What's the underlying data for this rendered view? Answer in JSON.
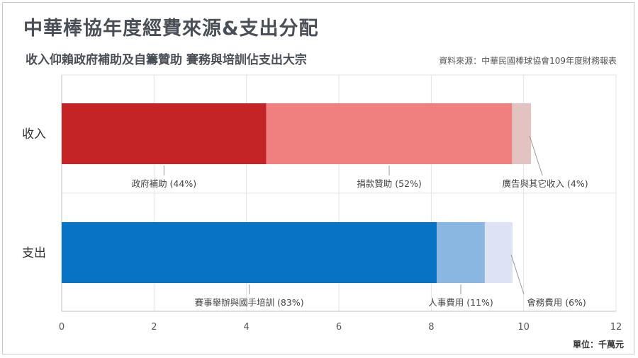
{
  "header": {
    "title": "中華棒協年度經費來源&支出分配",
    "subtitle": "收入仰賴政府補助及自籌贊助  賽務與培訓佔支出大宗",
    "source": "資料來源：中華民國棒球協會109年度財務報表",
    "unit": "單位：千萬元"
  },
  "chart_data": {
    "type": "bar",
    "orientation": "horizontal",
    "stacked": true,
    "categories": [
      "收入",
      "支出"
    ],
    "xlim": [
      0,
      12
    ],
    "xticks": [
      0,
      2,
      4,
      6,
      8,
      10,
      12
    ],
    "grid": true,
    "stacks": [
      {
        "category": "收入",
        "segments": [
          {
            "label": "政府補助 (44%)",
            "value": 4.43,
            "color": "#c52426"
          },
          {
            "label": "捐款贊助 (52%)",
            "value": 5.32,
            "color": "#f08080"
          },
          {
            "label": "廣告與其它收入 (4%)",
            "value": 0.41,
            "color": "#e3c2c2"
          }
        ]
      },
      {
        "category": "支出",
        "segments": [
          {
            "label": "賽事舉辦與國手培訓 (83%)",
            "value": 8.12,
            "color": "#0872c4"
          },
          {
            "label": "人事費用 (11%)",
            "value": 1.04,
            "color": "#8ab6e2"
          },
          {
            "label": "會務費用 (6%)",
            "value": 0.6,
            "color": "#dde2f5"
          }
        ]
      }
    ]
  }
}
